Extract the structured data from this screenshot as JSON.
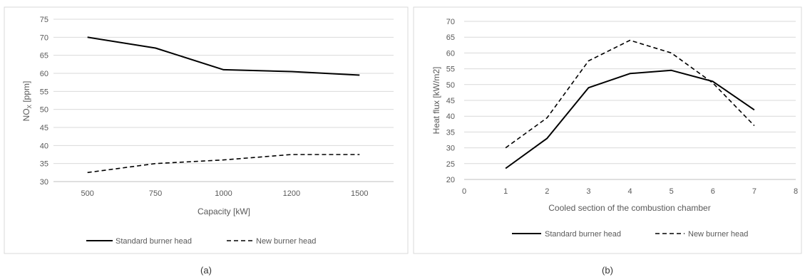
{
  "chart_data": [
    {
      "type": "line",
      "categories": [
        "500",
        "750",
        "1000",
        "1200",
        "1500"
      ],
      "series": [
        {
          "name": "Standard burner head",
          "values": [
            70,
            67,
            61,
            60.5,
            59.5
          ],
          "dash": "solid",
          "color": "#000000"
        },
        {
          "name": "New burner head",
          "values": [
            32.5,
            35,
            36,
            37.5,
            37.5
          ],
          "dash": "dashed",
          "color": "#000000"
        }
      ],
      "xlabel": "Capacity [kW]",
      "ylabel_main": "NO",
      "ylabel_sub": "X",
      "ylabel_unit": " [ppm]",
      "ylim": [
        30,
        75
      ],
      "yticks": [
        30,
        35,
        40,
        45,
        50,
        55,
        60,
        65,
        70,
        75
      ],
      "grid": true,
      "legend": "bottom",
      "caption": "(a)"
    },
    {
      "type": "line",
      "x_ticks": [
        0,
        1,
        2,
        3,
        4,
        5,
        6,
        7,
        8
      ],
      "xlim": [
        0,
        8
      ],
      "series": [
        {
          "name": "Standard burner head",
          "x": [
            1,
            2,
            3,
            4,
            5,
            6,
            7
          ],
          "values": [
            23.5,
            33,
            49,
            53.5,
            54.5,
            51,
            42
          ],
          "dash": "solid",
          "color": "#000000"
        },
        {
          "name": "New burner head",
          "x": [
            1,
            2,
            3,
            4,
            5,
            6,
            7
          ],
          "values": [
            30,
            39.5,
            57.5,
            64,
            60,
            50.5,
            37
          ],
          "dash": "dashed",
          "color": "#000000"
        }
      ],
      "xlabel": "Cooled section of the combustion chamber",
      "ylabel": "Heat flux [kW/m2]",
      "ylim": [
        20,
        70
      ],
      "yticks": [
        20,
        25,
        30,
        35,
        40,
        45,
        50,
        55,
        60,
        65,
        70
      ],
      "grid": true,
      "legend": "bottom",
      "caption": "(b)"
    }
  ]
}
